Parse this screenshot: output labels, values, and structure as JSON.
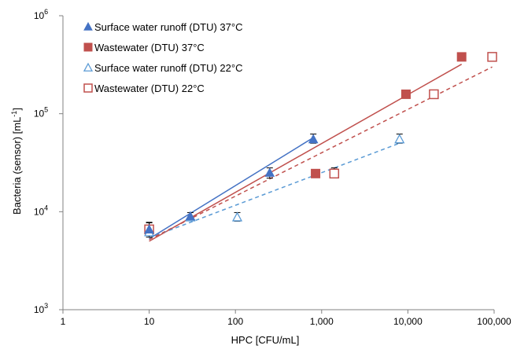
{
  "chart_data": {
    "type": "scatter",
    "xscale": "log",
    "yscale": "log",
    "xlim": [
      1,
      100000
    ],
    "ylim": [
      1000,
      1000000
    ],
    "xlabel": "HPC [CFU/mL]",
    "ylabel": "Bacteria (sensor) [mL",
    "ylabel_sup": "-1",
    "ylabel_end": "]",
    "x_tick_values": [
      1,
      10,
      100,
      1000,
      10000,
      100000
    ],
    "x_tick_labels": [
      "1",
      "10",
      "100",
      "1,000",
      "10,000",
      "100,000"
    ],
    "y_tick_values": [
      1000,
      10000,
      100000,
      1000000
    ],
    "y_tick_labels": [
      {
        "base": "10",
        "exp": "3"
      },
      {
        "base": "10",
        "exp": "4"
      },
      {
        "base": "10",
        "exp": "5"
      },
      {
        "base": "10",
        "exp": "6"
      }
    ],
    "grid": false,
    "legend_position": "top-left",
    "series": [
      {
        "name": "Surface water runoff (DTU) 37°C",
        "marker": "triangle-filled",
        "color": "#4472C4",
        "points": [
          [
            10,
            6600
          ],
          [
            30,
            9000
          ],
          [
            250,
            25000
          ],
          [
            800,
            55000
          ]
        ],
        "errors": [
          [
            10,
            5500,
            7800
          ],
          [
            30,
            8200,
            9800
          ],
          [
            250,
            22000,
            28000
          ],
          [
            800,
            50000,
            62000
          ]
        ],
        "fit": {
          "x": [
            10,
            800
          ],
          "y": [
            5300,
            57000
          ],
          "dashed": false
        }
      },
      {
        "name": "Wastewater (DTU) 37°C",
        "marker": "square-filled",
        "color": "#C0504D",
        "points": [
          [
            850,
            24500
          ],
          [
            9500,
            158000
          ],
          [
            42000,
            380000
          ]
        ],
        "errors": [],
        "fit": {
          "x": [
            10,
            42000
          ],
          "y": [
            5000,
            320000
          ],
          "dashed": false
        }
      },
      {
        "name": "Surface water runoff (DTU) 22°C",
        "marker": "triangle-open",
        "color": "#5B9BD5",
        "points": [
          [
            10,
            6200
          ],
          [
            30,
            8800
          ],
          [
            105,
            8800
          ],
          [
            8000,
            55000
          ]
        ],
        "errors": [
          [
            105,
            8000,
            9800
          ],
          [
            8000,
            50000,
            62000
          ]
        ],
        "fit": {
          "x": [
            10,
            8000
          ],
          "y": [
            5400,
            50000
          ],
          "dashed": true
        }
      },
      {
        "name": "Wastewater (DTU) 22°C",
        "marker": "square-open",
        "color": "#C0504D",
        "points": [
          [
            10,
            6600
          ],
          [
            1400,
            24500
          ],
          [
            20000,
            158000
          ],
          [
            95000,
            380000
          ]
        ],
        "errors": [
          [
            10,
            5700,
            7700
          ],
          [
            1400,
            23000,
            28000
          ]
        ],
        "fit": {
          "x": [
            10,
            95000
          ],
          "y": [
            5200,
            300000
          ],
          "dashed": true
        }
      }
    ]
  }
}
